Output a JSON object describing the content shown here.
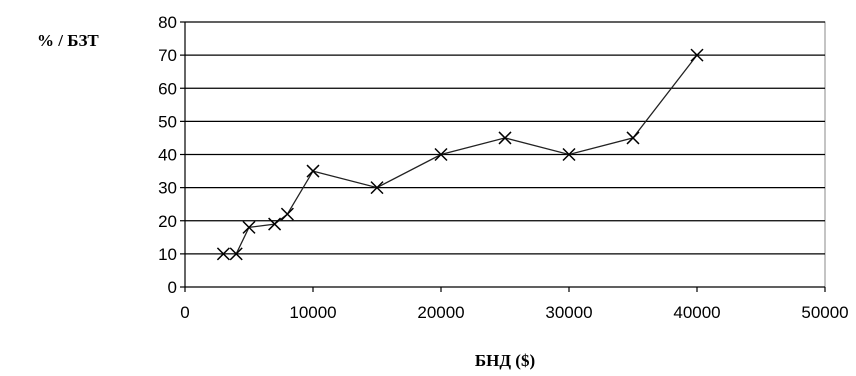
{
  "chart_data": {
    "type": "scatter",
    "ylabel": "% / БЗТ",
    "xlabel": "БНД ($)",
    "xlim": [
      0,
      50000
    ],
    "ylim": [
      0,
      80
    ],
    "x_ticks": [
      0,
      10000,
      20000,
      30000,
      40000,
      50000
    ],
    "y_ticks": [
      0,
      10,
      20,
      30,
      40,
      50,
      60,
      70,
      80
    ],
    "grid": "horizontal",
    "marker": "x",
    "connected": true,
    "series": [
      {
        "points": [
          {
            "x": 3000,
            "y": 10
          },
          {
            "x": 4000,
            "y": 10
          },
          {
            "x": 5000,
            "y": 18
          },
          {
            "x": 7000,
            "y": 19
          },
          {
            "x": 8000,
            "y": 22
          },
          {
            "x": 10000,
            "y": 35
          },
          {
            "x": 15000,
            "y": 30
          },
          {
            "x": 20000,
            "y": 40
          },
          {
            "x": 25000,
            "y": 45
          },
          {
            "x": 30000,
            "y": 40
          },
          {
            "x": 35000,
            "y": 45
          },
          {
            "x": 40000,
            "y": 70
          }
        ]
      }
    ]
  }
}
